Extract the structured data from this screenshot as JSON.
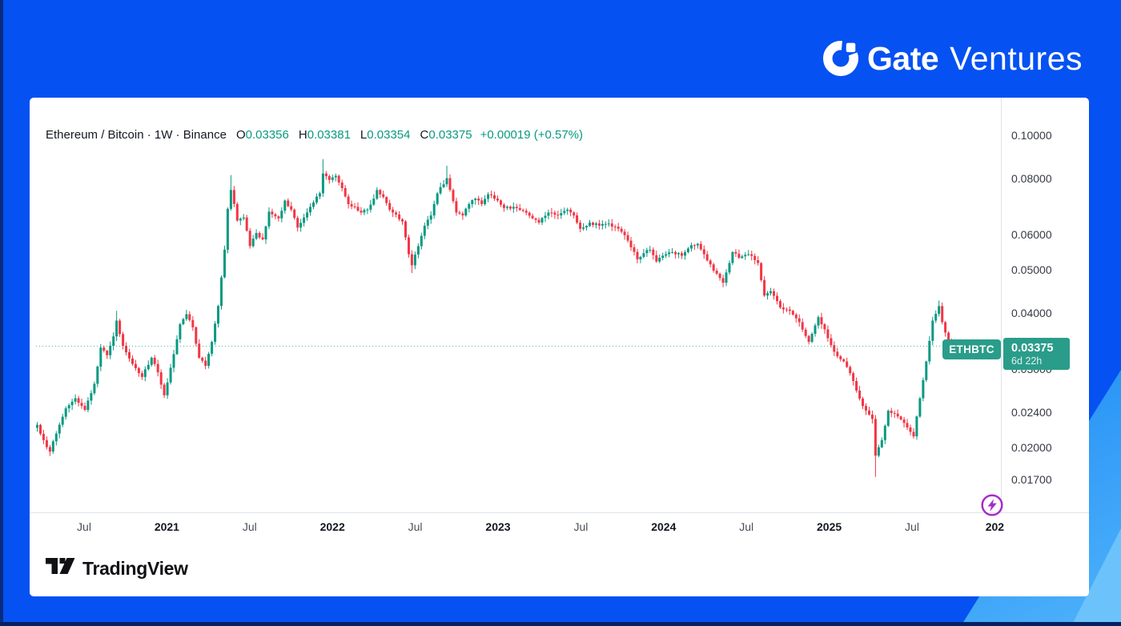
{
  "branding": {
    "gate_bold": "Gate",
    "gate_light": "Ventures"
  },
  "header": {
    "title": "Ethereum / Bitcoin · 1W · Binance",
    "o_label": "O",
    "o": "0.03356",
    "h_label": "H",
    "h": "0.03381",
    "l_label": "L",
    "l": "0.03354",
    "c_label": "C",
    "c": "0.03375",
    "change": "+0.00019 (+0.57%)"
  },
  "last_price": {
    "symbol": "ETHBTC",
    "price": "0.03375",
    "countdown": "6d 22h",
    "value": 0.03375
  },
  "tradingview": {
    "label": "TradingView"
  },
  "colors": {
    "up": "#089981",
    "down": "#f23645",
    "label_bg": "#2a9d8a",
    "background_blue": "#0551f2",
    "background_light_blue": "#2f9df5",
    "header_text": "#131722",
    "value_text": "#089981"
  },
  "chart_data": {
    "type": "candlestick",
    "title": "Ethereum / Bitcoin · 1W · Binance",
    "symbol": "ETHBTC",
    "exchange": "Binance",
    "timeframe": "1W",
    "y_axis": {
      "scale": "log",
      "side": "right",
      "ticks": [
        {
          "value": 0.1,
          "label": "0.10000"
        },
        {
          "value": 0.08,
          "label": "0.08000"
        },
        {
          "value": 0.06,
          "label": "0.06000"
        },
        {
          "value": 0.05,
          "label": "0.05000"
        },
        {
          "value": 0.04,
          "label": "0.04000"
        },
        {
          "value": 0.03,
          "label": "0.03000",
          "partially_hidden": true
        },
        {
          "value": 0.024,
          "label": "0.02400"
        },
        {
          "value": 0.02,
          "label": "0.02000"
        },
        {
          "value": 0.017,
          "label": "0.01700"
        }
      ]
    },
    "x_axis": {
      "labels": [
        {
          "text": "Jul",
          "bold": false
        },
        {
          "text": "2021",
          "bold": true
        },
        {
          "text": "Jul",
          "bold": false
        },
        {
          "text": "2022",
          "bold": true
        },
        {
          "text": "Jul",
          "bold": false
        },
        {
          "text": "2023",
          "bold": true
        },
        {
          "text": "Jul",
          "bold": false
        },
        {
          "text": "2024",
          "bold": true
        },
        {
          "text": "Jul",
          "bold": false
        },
        {
          "text": "2025",
          "bold": true
        },
        {
          "text": "Jul",
          "bold": false
        },
        {
          "text": "202",
          "bold": true
        }
      ]
    },
    "current": {
      "open": 0.03356,
      "high": 0.03381,
      "low": 0.03354,
      "close": 0.03375,
      "change": 0.00019,
      "change_pct": 0.57,
      "countdown": "6d 22h"
    },
    "grid": false,
    "last_price_line": {
      "style": "dotted",
      "value": 0.03375
    },
    "weekly_close_keyframes": [
      [
        0,
        0.0225
      ],
      [
        2,
        0.0208
      ],
      [
        4,
        0.0196
      ],
      [
        6,
        0.0215
      ],
      [
        9,
        0.0245
      ],
      [
        12,
        0.0258
      ],
      [
        15,
        0.0243
      ],
      [
        18,
        0.0278
      ],
      [
        20,
        0.0335
      ],
      [
        22,
        0.0322
      ],
      [
        24,
        0.0355
      ],
      [
        25,
        0.0385
      ],
      [
        27,
        0.0338
      ],
      [
        30,
        0.0308
      ],
      [
        33,
        0.0288
      ],
      [
        36,
        0.0318
      ],
      [
        38,
        0.0295
      ],
      [
        40,
        0.0262
      ],
      [
        42,
        0.0302
      ],
      [
        45,
        0.0378
      ],
      [
        47,
        0.0398
      ],
      [
        49,
        0.0372
      ],
      [
        51,
        0.0318
      ],
      [
        53,
        0.0305
      ],
      [
        55,
        0.0345
      ],
      [
        57,
        0.0415
      ],
      [
        59,
        0.0555
      ],
      [
        60,
        0.0685
      ],
      [
        61,
        0.0755
      ],
      [
        63,
        0.0645
      ],
      [
        65,
        0.0655
      ],
      [
        67,
        0.0565
      ],
      [
        69,
        0.0605
      ],
      [
        71,
        0.0585
      ],
      [
        73,
        0.0675
      ],
      [
        76,
        0.0652
      ],
      [
        78,
        0.0715
      ],
      [
        80,
        0.0682
      ],
      [
        82,
        0.0622
      ],
      [
        84,
        0.0655
      ],
      [
        86,
        0.0692
      ],
      [
        89,
        0.0742
      ],
      [
        90,
        0.0822
      ],
      [
        92,
        0.0795
      ],
      [
        94,
        0.0812
      ],
      [
        96,
        0.0762
      ],
      [
        98,
        0.0702
      ],
      [
        100,
        0.0692
      ],
      [
        102,
        0.0672
      ],
      [
        104,
        0.0682
      ],
      [
        106,
        0.0722
      ],
      [
        107,
        0.0755
      ],
      [
        109,
        0.0728
      ],
      [
        111,
        0.0682
      ],
      [
        113,
        0.0665
      ],
      [
        115,
        0.0642
      ],
      [
        117,
        0.0542
      ],
      [
        118,
        0.0512
      ],
      [
        120,
        0.0565
      ],
      [
        122,
        0.0628
      ],
      [
        124,
        0.0662
      ],
      [
        126,
        0.0742
      ],
      [
        129,
        0.0802
      ],
      [
        130,
        0.0755
      ],
      [
        132,
        0.0672
      ],
      [
        134,
        0.0662
      ],
      [
        136,
        0.0702
      ],
      [
        138,
        0.0722
      ],
      [
        140,
        0.0702
      ],
      [
        142,
        0.0738
      ],
      [
        144,
        0.0722
      ],
      [
        147,
        0.0688
      ],
      [
        150,
        0.0692
      ],
      [
        153,
        0.0678
      ],
      [
        156,
        0.0652
      ],
      [
        158,
        0.0638
      ],
      [
        161,
        0.0672
      ],
      [
        164,
        0.0662
      ],
      [
        167,
        0.0682
      ],
      [
        169,
        0.0662
      ],
      [
        171,
        0.0618
      ],
      [
        174,
        0.0638
      ],
      [
        177,
        0.0628
      ],
      [
        180,
        0.0635
      ],
      [
        183,
        0.0618
      ],
      [
        185,
        0.0598
      ],
      [
        187,
        0.0562
      ],
      [
        189,
        0.0528
      ],
      [
        191,
        0.0545
      ],
      [
        193,
        0.0555
      ],
      [
        195,
        0.0522
      ],
      [
        197,
        0.0538
      ],
      [
        200,
        0.0548
      ],
      [
        203,
        0.0538
      ],
      [
        206,
        0.0568
      ],
      [
        208,
        0.0572
      ],
      [
        210,
        0.0542
      ],
      [
        213,
        0.0498
      ],
      [
        216,
        0.0468
      ],
      [
        218,
        0.0518
      ],
      [
        219,
        0.0548
      ],
      [
        221,
        0.0532
      ],
      [
        224,
        0.0542
      ],
      [
        227,
        0.0518
      ],
      [
        229,
        0.0438
      ],
      [
        231,
        0.0448
      ],
      [
        234,
        0.0412
      ],
      [
        237,
        0.0405
      ],
      [
        240,
        0.0382
      ],
      [
        243,
        0.0345
      ],
      [
        246,
        0.0392
      ],
      [
        248,
        0.0368
      ],
      [
        251,
        0.0328
      ],
      [
        254,
        0.0312
      ],
      [
        257,
        0.0282
      ],
      [
        260,
        0.0248
      ],
      [
        263,
        0.0232
      ],
      [
        264,
        0.0192
      ],
      [
        266,
        0.0208
      ],
      [
        268,
        0.0242
      ],
      [
        271,
        0.0235
      ],
      [
        274,
        0.0222
      ],
      [
        276,
        0.0212
      ],
      [
        278,
        0.0258
      ],
      [
        280,
        0.0312
      ],
      [
        282,
        0.0385
      ],
      [
        284,
        0.0415
      ],
      [
        285,
        0.0382
      ],
      [
        286,
        0.0362
      ],
      [
        287,
        0.0348
      ],
      [
        288,
        0.03375
      ]
    ],
    "wick_extremes": {
      "25": {
        "h": 0.0405
      },
      "61": {
        "h": 0.0815
      },
      "90": {
        "h": 0.0885
      },
      "118": {
        "l": 0.0492
      },
      "129": {
        "h": 0.0855
      },
      "264": {
        "l": 0.0172
      },
      "284": {
        "h": 0.0427
      }
    }
  }
}
